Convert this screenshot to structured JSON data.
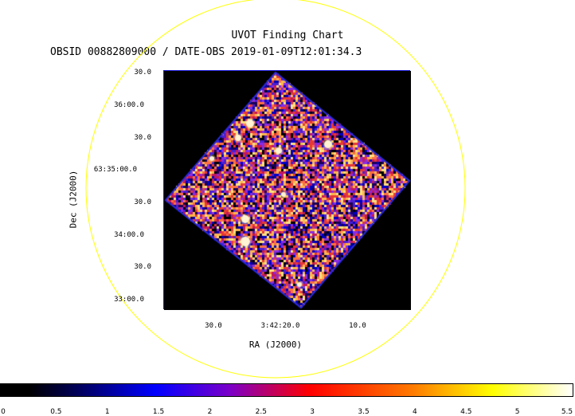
{
  "title": "UVOT Finding Chart",
  "subtitle": "OBSID 00882809000 / DATE-OBS 2019-01-09T12:01:34.3",
  "axes": {
    "x_label": "RA (J2000)",
    "y_label": "Dec (J2000)",
    "ra_ticks": [
      "30.0",
      "3:42:20.0",
      "10.0"
    ],
    "dec_ticks": [
      "30.0",
      "36:00.0",
      "30.0",
      "63:35:00.0",
      "30.0",
      "34:00.0",
      "30.0",
      "33:00.0"
    ]
  },
  "colorbar": {
    "ticks": [
      "0",
      "0.5",
      "1",
      "1.5",
      "2",
      "2.5",
      "3",
      "3.5",
      "4",
      "4.5",
      "5",
      "5.5"
    ],
    "min": 0,
    "max": 5.5
  },
  "colors": {
    "circle": "#ffff00",
    "frame": "#1b1bd6"
  }
}
